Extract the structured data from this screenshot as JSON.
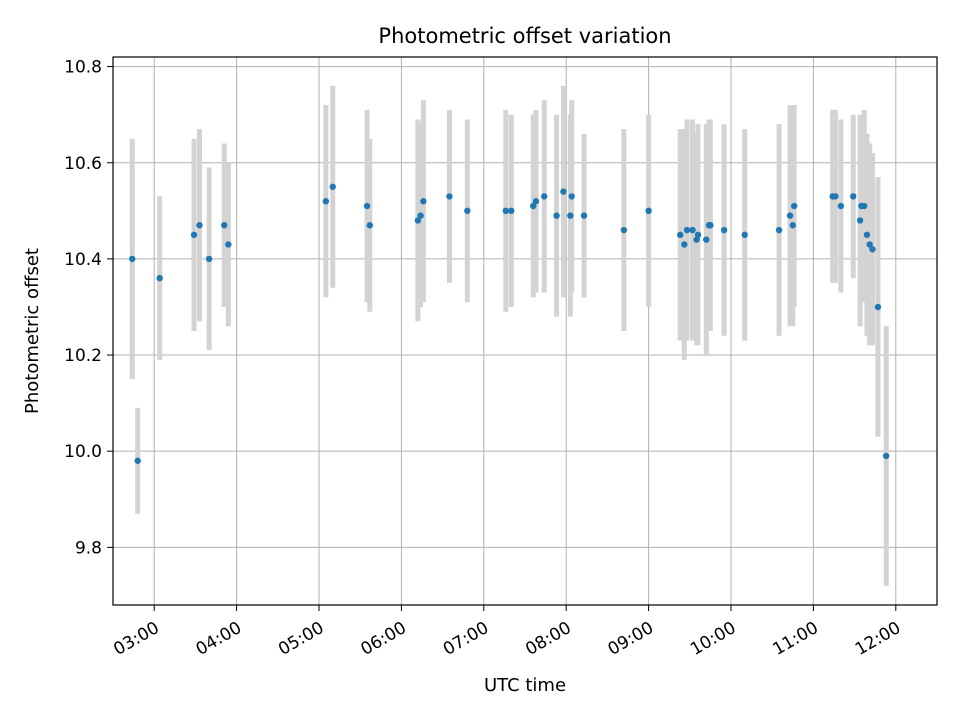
{
  "chart_data": {
    "type": "scatter",
    "title": "Photometric offset variation",
    "xlabel": "UTC time",
    "ylabel": "Photometric offset",
    "grid": true,
    "xlim": [
      "02:30",
      "12:30"
    ],
    "ylim": [
      9.68,
      10.82
    ],
    "x_ticks": [
      "03:00",
      "04:00",
      "05:00",
      "06:00",
      "07:00",
      "08:00",
      "09:00",
      "10:00",
      "11:00",
      "12:00"
    ],
    "y_ticks": [
      "9.8",
      "10.0",
      "10.2",
      "10.4",
      "10.6",
      "10.8"
    ],
    "colors": {
      "points": "#1f77b4",
      "error_bars": "#d3d3d3",
      "grid": "#b0b0b0"
    },
    "series": [
      {
        "x": [
          "02:44",
          "02:48",
          "03:04",
          "03:29",
          "03:33",
          "03:40",
          "03:51",
          "03:54",
          "05:05",
          "05:10",
          "05:35",
          "05:37",
          "06:12",
          "06:14",
          "06:16",
          "06:35",
          "06:48",
          "07:16",
          "07:20",
          "07:36",
          "07:38",
          "07:44",
          "07:53",
          "07:58",
          "08:03",
          "08:04",
          "08:13",
          "08:42",
          "09:00",
          "09:23",
          "09:26",
          "09:28",
          "09:32",
          "09:35",
          "09:36",
          "09:42",
          "09:44",
          "09:45",
          "09:55",
          "10:10",
          "10:35",
          "10:43",
          "10:45",
          "10:46",
          "11:14",
          "11:16",
          "11:20",
          "11:29",
          "11:34",
          "11:35",
          "11:37",
          "11:39",
          "11:41",
          "11:43",
          "11:47",
          "11:53"
        ],
        "y": [
          10.4,
          9.98,
          10.36,
          10.45,
          10.47,
          10.4,
          10.47,
          10.43,
          10.52,
          10.55,
          10.51,
          10.47,
          10.48,
          10.49,
          10.52,
          10.53,
          10.5,
          10.5,
          10.5,
          10.51,
          10.52,
          10.53,
          10.49,
          10.54,
          10.49,
          10.53,
          10.49,
          10.46,
          10.5,
          10.45,
          10.43,
          10.46,
          10.46,
          10.44,
          10.45,
          10.44,
          10.47,
          10.47,
          10.46,
          10.45,
          10.46,
          10.49,
          10.47,
          10.51,
          10.53,
          10.53,
          10.51,
          10.53,
          10.48,
          10.51,
          10.51,
          10.45,
          10.43,
          10.42,
          10.3,
          9.99
        ],
        "err": [
          0.25,
          0.11,
          0.17,
          0.2,
          0.2,
          0.19,
          0.17,
          0.17,
          0.2,
          0.21,
          0.2,
          0.18,
          0.21,
          0.19,
          0.21,
          0.18,
          0.19,
          0.21,
          0.2,
          0.19,
          0.19,
          0.2,
          0.21,
          0.22,
          0.21,
          0.2,
          0.17,
          0.21,
          0.2,
          0.22,
          0.24,
          0.23,
          0.23,
          0.22,
          0.23,
          0.24,
          0.22,
          0.22,
          0.22,
          0.22,
          0.22,
          0.23,
          0.21,
          0.21,
          0.18,
          0.18,
          0.18,
          0.17,
          0.22,
          0.19,
          0.2,
          0.21,
          0.21,
          0.2,
          0.27,
          0.27
        ]
      }
    ]
  }
}
